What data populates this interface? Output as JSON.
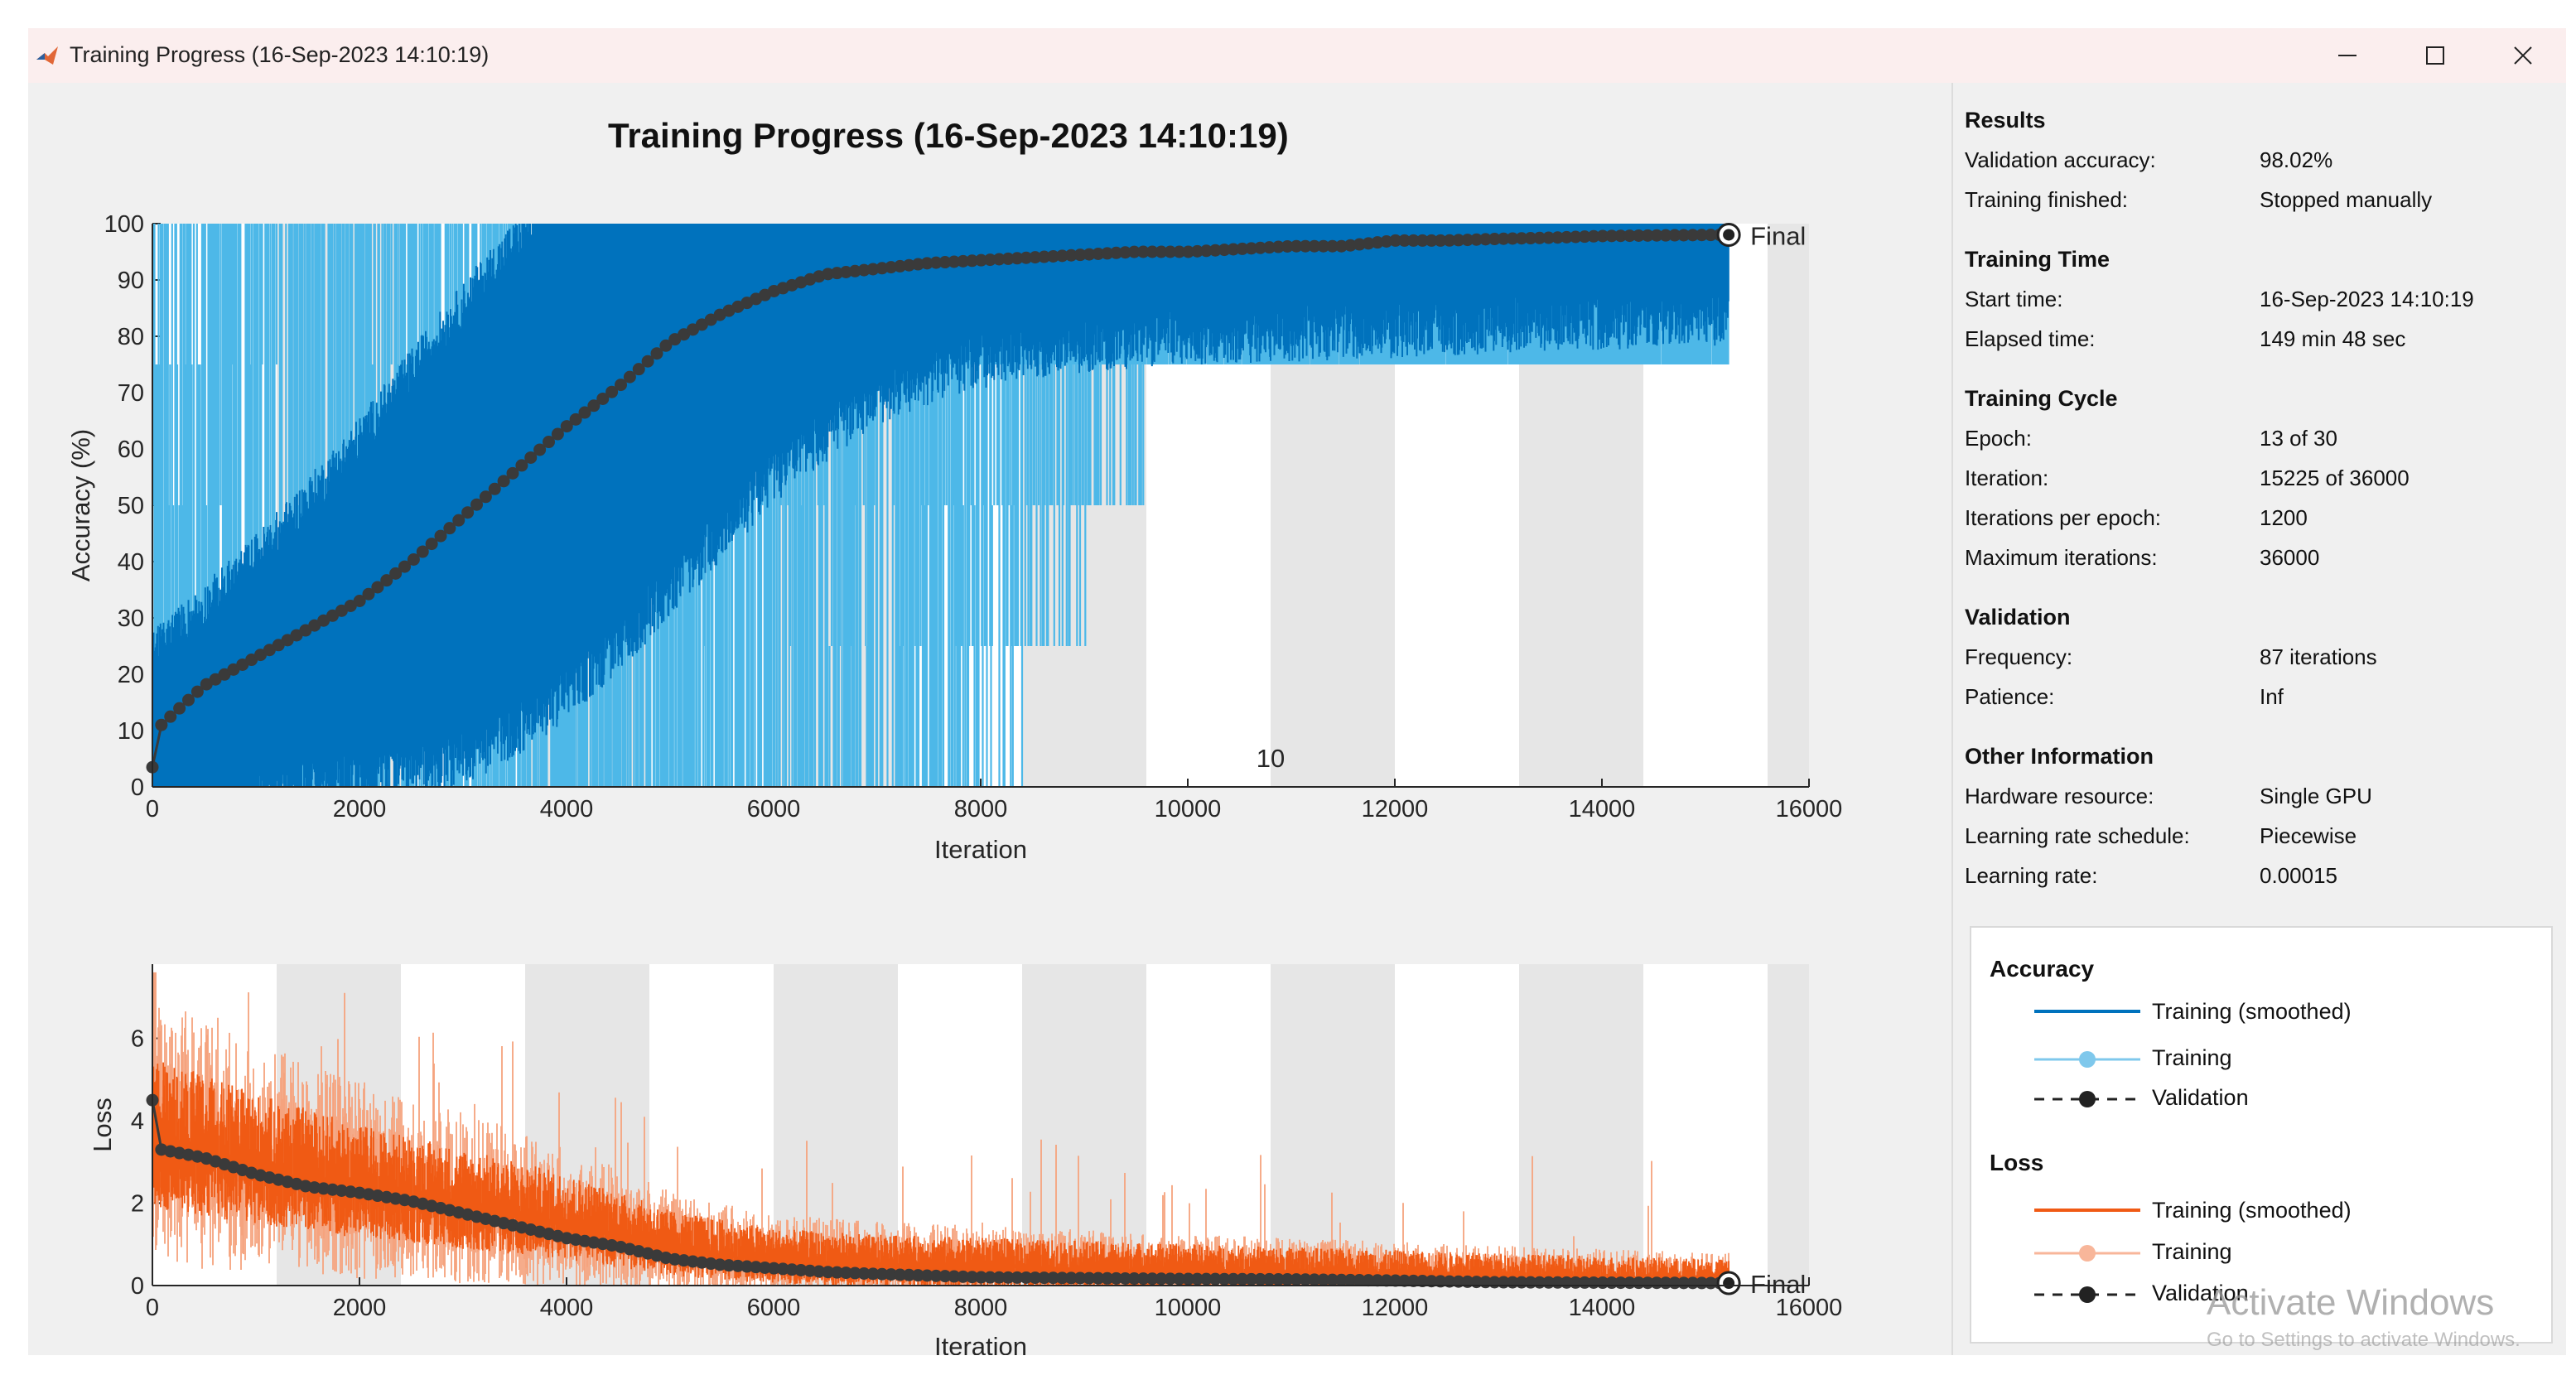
{
  "window": {
    "title": "Training Progress (16-Sep-2023 14:10:19)",
    "controls": [
      "minimize",
      "maximize",
      "close"
    ]
  },
  "colors": {
    "acc_raw": "#4db8e8",
    "acc_smooth": "#0072bd",
    "loss_raw": "#f5a37e",
    "loss_smooth": "#f05a14",
    "validation": "#3a3a3a",
    "band": "#e6e6e6"
  },
  "icons": {
    "app": "matlab-logo-icon",
    "minimize": "minimize-icon",
    "maximize": "maximize-icon",
    "close": "close-icon"
  },
  "results": {
    "heading": "Results",
    "rows": [
      {
        "label": "Validation accuracy:",
        "value": "98.02%"
      },
      {
        "label": "Training finished:",
        "value": "Stopped manually"
      }
    ]
  },
  "training_time": {
    "heading": "Training Time",
    "rows": [
      {
        "label": "Start time:",
        "value": "16-Sep-2023 14:10:19"
      },
      {
        "label": "Elapsed time:",
        "value": "149 min 48 sec"
      }
    ]
  },
  "training_cycle": {
    "heading": "Training Cycle",
    "rows": [
      {
        "label": "Epoch:",
        "value": "13 of 30"
      },
      {
        "label": "Iteration:",
        "value": "15225 of 36000"
      },
      {
        "label": "Iterations per epoch:",
        "value": "1200"
      },
      {
        "label": "Maximum iterations:",
        "value": "36000"
      }
    ]
  },
  "validation": {
    "heading": "Validation",
    "rows": [
      {
        "label": "Frequency:",
        "value": "87 iterations"
      },
      {
        "label": "Patience:",
        "value": "Inf"
      }
    ]
  },
  "other_info": {
    "heading": "Other Information",
    "rows": [
      {
        "label": "Hardware resource:",
        "value": "Single GPU"
      },
      {
        "label": "Learning rate schedule:",
        "value": "Piecewise"
      },
      {
        "label": "Learning rate:",
        "value": "0.00015"
      }
    ]
  },
  "legend": {
    "accuracy_heading": "Accuracy",
    "loss_heading": "Loss",
    "training_smoothed": "Training (smoothed)",
    "training": "Training",
    "validation": "Validation"
  },
  "watermark": {
    "title": "Activate Windows",
    "subtitle": "Go to Settings to activate Windows."
  },
  "chart_data": [
    {
      "type": "line",
      "title": "Training Progress (16-Sep-2023 14:10:19)",
      "xlabel": "Iteration",
      "ylabel": "Accuracy (%)",
      "xlim": [
        0,
        16000
      ],
      "ylim": [
        0,
        100
      ],
      "xticks": [
        0,
        2000,
        4000,
        6000,
        8000,
        10000,
        12000,
        14000,
        16000
      ],
      "yticks": [
        0,
        10,
        20,
        30,
        40,
        50,
        60,
        70,
        80,
        90,
        100
      ],
      "epoch_length": 1200,
      "epoch_annotation": {
        "iteration": 10800,
        "label": "10"
      },
      "final_label": "Final",
      "final_iteration": 15225,
      "final_validation_accuracy": 98.02,
      "training_levels": [
        0,
        25,
        50,
        75,
        100
      ],
      "validation_series": {
        "name": "Validation",
        "x": [
          0,
          87,
          500,
          1000,
          1500,
          2000,
          2500,
          3000,
          3500,
          4000,
          4500,
          5000,
          5500,
          6000,
          6500,
          7000,
          7500,
          8000,
          8500,
          9000,
          9500,
          10000,
          10500,
          11000,
          11500,
          12000,
          12500,
          13000,
          13500,
          14000,
          14500,
          15225
        ],
        "y": [
          3.5,
          11,
          18,
          23,
          28,
          33,
          40,
          48,
          56,
          64,
          71,
          79,
          84,
          88,
          91,
          92,
          93,
          93.5,
          94,
          94.5,
          95,
          95,
          95.5,
          96,
          96,
          97,
          97,
          97.3,
          97.5,
          97.8,
          97.9,
          98.02
        ]
      },
      "training_smoothed_series": {
        "name": "Training (smoothed)",
        "x": [
          0,
          1000,
          2000,
          3000,
          4000,
          5000,
          6000,
          7000,
          8000,
          9000,
          10000,
          11000,
          12000,
          13000,
          14000,
          15225
        ],
        "y": [
          8,
          20,
          32,
          46,
          62,
          76,
          86,
          91,
          93,
          94,
          95,
          95.5,
          96,
          97,
          97.5,
          98
        ]
      }
    },
    {
      "type": "line",
      "xlabel": "Iteration",
      "ylabel": "Loss",
      "xlim": [
        0,
        16000
      ],
      "ylim": [
        0,
        7.8
      ],
      "xticks": [
        0,
        2000,
        4000,
        6000,
        8000,
        10000,
        12000,
        14000,
        16000
      ],
      "yticks": [
        0,
        2,
        4,
        6
      ],
      "final_label": "Final",
      "validation_series": {
        "name": "Validation",
        "x": [
          0,
          87,
          500,
          1000,
          1500,
          2000,
          2500,
          3000,
          3500,
          4000,
          4500,
          5000,
          5500,
          6000,
          6500,
          7000,
          7500,
          8000,
          9000,
          10000,
          11000,
          12000,
          13000,
          14000,
          15225
        ],
        "y": [
          4.5,
          3.3,
          3.1,
          2.7,
          2.4,
          2.25,
          2.05,
          1.75,
          1.45,
          1.15,
          0.95,
          0.65,
          0.5,
          0.42,
          0.33,
          0.28,
          0.24,
          0.2,
          0.18,
          0.16,
          0.15,
          0.12,
          0.08,
          0.07,
          0.06
        ]
      },
      "training_smoothed_series": {
        "name": "Training (smoothed)",
        "x": [
          0,
          1000,
          2000,
          3000,
          4000,
          5000,
          6000,
          7000,
          8000,
          9000,
          10000,
          11000,
          12000,
          13000,
          14000,
          15225
        ],
        "y": [
          3.4,
          2.8,
          2.3,
          1.9,
          1.5,
          0.9,
          0.6,
          0.5,
          0.45,
          0.4,
          0.35,
          0.3,
          0.25,
          0.2,
          0.15,
          0.1
        ]
      }
    }
  ]
}
